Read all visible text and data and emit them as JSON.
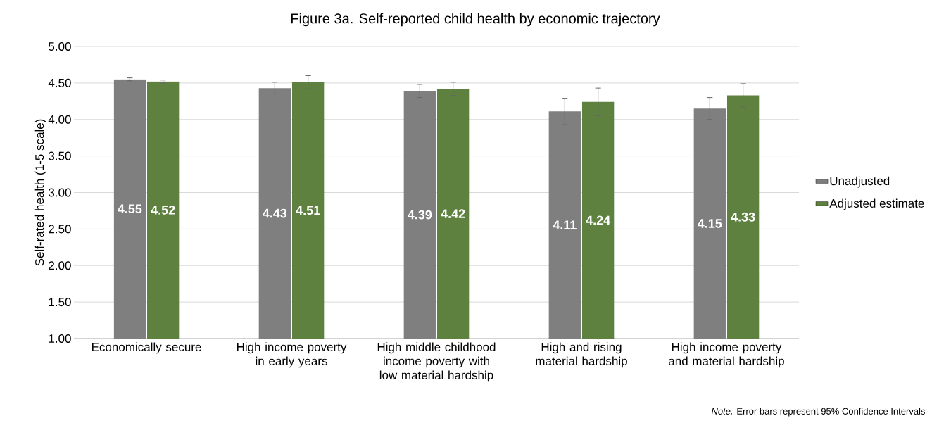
{
  "chart_data": {
    "type": "bar",
    "title": "Figure 3a. Self-reported child health by economic trajectory",
    "ylabel": "Self-rated health (1-5 scale)",
    "categories": [
      "Economically secure",
      "High income poverty in early years",
      "High middle childhood income poverty with low material hardship",
      "High and rising material hardship",
      "High income poverty and material hardship"
    ],
    "series": [
      {
        "name": "Unadjusted",
        "color": "#7f7f7f",
        "values": [
          4.55,
          4.43,
          4.39,
          4.11,
          4.15
        ],
        "errors": [
          0.02,
          0.08,
          0.09,
          0.18,
          0.15
        ]
      },
      {
        "name": "Adjusted estimate",
        "color": "#5e8140",
        "values": [
          4.52,
          4.51,
          4.42,
          4.24,
          4.33
        ],
        "errors": [
          0.02,
          0.09,
          0.09,
          0.19,
          0.16
        ]
      }
    ],
    "ylim": [
      1,
      5
    ],
    "yticks": [
      {
        "value": 1,
        "label": "1.00"
      },
      {
        "value": 1.5,
        "label": "1.50"
      },
      {
        "value": 2,
        "label": "2.00"
      },
      {
        "value": 2.5,
        "label": "2.50"
      },
      {
        "value": 3,
        "label": "3.00"
      },
      {
        "value": 3.5,
        "label": "3.50"
      },
      {
        "value": 4,
        "label": "4.00"
      },
      {
        "value": 4.5,
        "label": "4.50"
      },
      {
        "value": 5,
        "label": "5.00"
      }
    ],
    "grid": "y",
    "legend": "right",
    "data_labels": true,
    "annotations": [
      "*Note.* Error bars represent 95% Confidence Intervals"
    ]
  }
}
